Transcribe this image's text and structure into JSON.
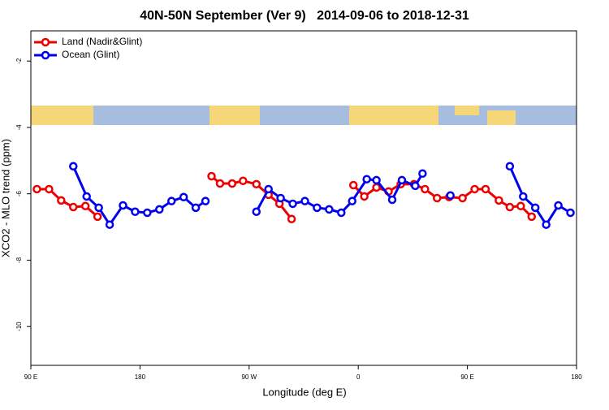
{
  "chart_data": {
    "type": "line",
    "title": "40N-50N September (Ver 9)   2014-09-06 to 2018-12-31",
    "xlabel": "Longitude (deg E)",
    "ylabel": "XCO2 - MLO trend (ppm)",
    "xlim": [
      90,
      540
    ],
    "ylim": [
      -11.17,
      -1.09
    ],
    "xticks": [
      {
        "value": 90,
        "label": "90 E"
      },
      {
        "value": 180,
        "label": "180"
      },
      {
        "value": 270,
        "label": "90 W"
      },
      {
        "value": 360,
        "label": "0"
      },
      {
        "value": 450,
        "label": "90 E"
      },
      {
        "value": 540,
        "label": "180"
      }
    ],
    "yticks": [
      -2,
      -4,
      -6,
      -8,
      -10
    ],
    "legend": "top-left",
    "series": [
      {
        "name": "Land (Nadir&Glint)",
        "color": "#ee0000",
        "x": [
          95,
          105,
          115,
          125,
          135,
          145,
          null,
          239,
          246,
          256,
          265,
          276,
          286,
          295,
          305,
          null,
          356,
          365,
          375,
          385,
          395,
          406,
          415,
          425,
          435,
          446,
          456,
          465,
          476,
          485,
          494,
          503
        ],
        "values": [
          -5.86,
          -5.86,
          -6.2,
          -6.4,
          -6.37,
          -6.69,
          null,
          -5.47,
          -5.69,
          -5.69,
          -5.61,
          -5.71,
          -6.03,
          -6.3,
          -6.76,
          null,
          -5.74,
          -6.08,
          -5.81,
          -5.93,
          -5.71,
          -5.71,
          -5.86,
          -6.13,
          -6.1,
          -6.13,
          -5.86,
          -5.86,
          -6.2,
          -6.4,
          -6.37,
          -6.69
        ]
      },
      {
        "name": "Ocean (Glint)",
        "color": "#0000ee",
        "x": [
          125,
          136,
          146,
          155,
          166,
          176,
          186,
          196,
          206,
          216,
          226,
          234,
          null,
          276,
          286,
          296,
          306,
          316,
          326,
          336,
          346,
          355,
          367,
          375,
          388,
          396,
          407,
          413,
          null,
          436,
          null,
          485,
          496,
          506,
          515,
          525,
          535
        ],
        "values": [
          -5.17,
          -6.08,
          -6.42,
          -6.93,
          -6.35,
          -6.54,
          -6.57,
          -6.47,
          -6.22,
          -6.1,
          -6.42,
          -6.22,
          null,
          -6.54,
          -5.86,
          -6.13,
          -6.3,
          -6.22,
          -6.42,
          -6.47,
          -6.57,
          -6.22,
          -5.56,
          -5.59,
          -6.18,
          -5.59,
          -5.76,
          -5.39,
          null,
          -6.05,
          null,
          -5.17,
          -6.08,
          -6.42,
          -6.93,
          -6.35,
          -6.57
        ]
      }
    ]
  }
}
